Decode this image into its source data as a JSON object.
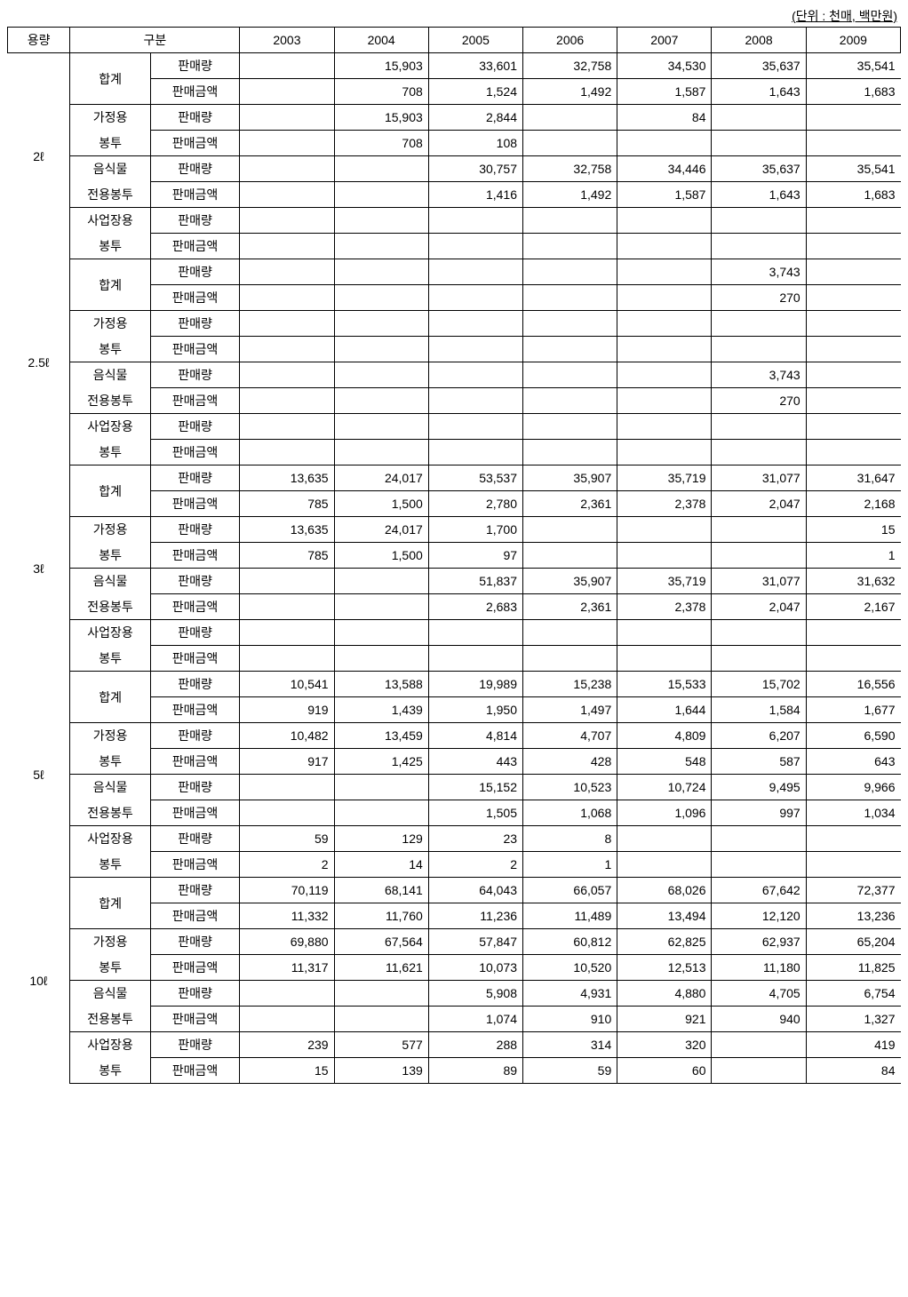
{
  "unit_label": "(단위 : 천매, 백만원)",
  "headers": {
    "capacity": "용량",
    "category": "구분",
    "years": [
      "2003",
      "2004",
      "2005",
      "2006",
      "2007",
      "2008",
      "2009"
    ]
  },
  "subcats": {
    "total": "합계",
    "home1": "가정용",
    "home2": "봉투",
    "food1": "음식물",
    "food2": "전용봉투",
    "biz1": "사업장용",
    "biz2": "봉투"
  },
  "metrics": {
    "qty": "판매량",
    "amt": "판매금액"
  },
  "capacities": [
    "2ℓ",
    "2.5ℓ",
    "3ℓ",
    "5ℓ",
    "10ℓ"
  ],
  "data": {
    "2l": {
      "total": {
        "qty": [
          "",
          "15,903",
          "33,601",
          "32,758",
          "34,530",
          "35,637",
          "35,541"
        ],
        "amt": [
          "",
          "708",
          "1,524",
          "1,492",
          "1,587",
          "1,643",
          "1,683"
        ]
      },
      "home": {
        "qty": [
          "",
          "15,903",
          "2,844",
          "",
          "84",
          "",
          ""
        ],
        "amt": [
          "",
          "708",
          "108",
          "",
          "",
          "",
          ""
        ]
      },
      "food": {
        "qty": [
          "",
          "",
          "30,757",
          "32,758",
          "34,446",
          "35,637",
          "35,541"
        ],
        "amt": [
          "",
          "",
          "1,416",
          "1,492",
          "1,587",
          "1,643",
          "1,683"
        ]
      },
      "biz": {
        "qty": [
          "",
          "",
          "",
          "",
          "",
          "",
          ""
        ],
        "amt": [
          "",
          "",
          "",
          "",
          "",
          "",
          ""
        ]
      }
    },
    "2_5l": {
      "total": {
        "qty": [
          "",
          "",
          "",
          "",
          "",
          "3,743",
          ""
        ],
        "amt": [
          "",
          "",
          "",
          "",
          "",
          "270",
          ""
        ]
      },
      "home": {
        "qty": [
          "",
          "",
          "",
          "",
          "",
          "",
          ""
        ],
        "amt": [
          "",
          "",
          "",
          "",
          "",
          "",
          ""
        ]
      },
      "food": {
        "qty": [
          "",
          "",
          "",
          "",
          "",
          "3,743",
          ""
        ],
        "amt": [
          "",
          "",
          "",
          "",
          "",
          "270",
          ""
        ]
      },
      "biz": {
        "qty": [
          "",
          "",
          "",
          "",
          "",
          "",
          ""
        ],
        "amt": [
          "",
          "",
          "",
          "",
          "",
          "",
          ""
        ]
      }
    },
    "3l": {
      "total": {
        "qty": [
          "13,635",
          "24,017",
          "53,537",
          "35,907",
          "35,719",
          "31,077",
          "31,647"
        ],
        "amt": [
          "785",
          "1,500",
          "2,780",
          "2,361",
          "2,378",
          "2,047",
          "2,168"
        ]
      },
      "home": {
        "qty": [
          "13,635",
          "24,017",
          "1,700",
          "",
          "",
          "",
          "15"
        ],
        "amt": [
          "785",
          "1,500",
          "97",
          "",
          "",
          "",
          "1"
        ]
      },
      "food": {
        "qty": [
          "",
          "",
          "51,837",
          "35,907",
          "35,719",
          "31,077",
          "31,632"
        ],
        "amt": [
          "",
          "",
          "2,683",
          "2,361",
          "2,378",
          "2,047",
          "2,167"
        ]
      },
      "biz": {
        "qty": [
          "",
          "",
          "",
          "",
          "",
          "",
          ""
        ],
        "amt": [
          "",
          "",
          "",
          "",
          "",
          "",
          ""
        ]
      }
    },
    "5l": {
      "total": {
        "qty": [
          "10,541",
          "13,588",
          "19,989",
          "15,238",
          "15,533",
          "15,702",
          "16,556"
        ],
        "amt": [
          "919",
          "1,439",
          "1,950",
          "1,497",
          "1,644",
          "1,584",
          "1,677"
        ]
      },
      "home": {
        "qty": [
          "10,482",
          "13,459",
          "4,814",
          "4,707",
          "4,809",
          "6,207",
          "6,590"
        ],
        "amt": [
          "917",
          "1,425",
          "443",
          "428",
          "548",
          "587",
          "643"
        ]
      },
      "food": {
        "qty": [
          "",
          "",
          "15,152",
          "10,523",
          "10,724",
          "9,495",
          "9,966"
        ],
        "amt": [
          "",
          "",
          "1,505",
          "1,068",
          "1,096",
          "997",
          "1,034"
        ]
      },
      "biz": {
        "qty": [
          "59",
          "129",
          "23",
          "8",
          "",
          "",
          ""
        ],
        "amt": [
          "2",
          "14",
          "2",
          "1",
          "",
          "",
          ""
        ]
      }
    },
    "10l": {
      "total": {
        "qty": [
          "70,119",
          "68,141",
          "64,043",
          "66,057",
          "68,026",
          "67,642",
          "72,377"
        ],
        "amt": [
          "11,332",
          "11,760",
          "11,236",
          "11,489",
          "13,494",
          "12,120",
          "13,236"
        ]
      },
      "home": {
        "qty": [
          "69,880",
          "67,564",
          "57,847",
          "60,812",
          "62,825",
          "62,937",
          "65,204"
        ],
        "amt": [
          "11,317",
          "11,621",
          "10,073",
          "10,520",
          "12,513",
          "11,180",
          "11,825"
        ]
      },
      "food": {
        "qty": [
          "",
          "",
          "5,908",
          "4,931",
          "4,880",
          "4,705",
          "6,754"
        ],
        "amt": [
          "",
          "",
          "1,074",
          "910",
          "921",
          "940",
          "1,327"
        ]
      },
      "biz": {
        "qty": [
          "239",
          "577",
          "288",
          "314",
          "320",
          "",
          "419"
        ],
        "amt": [
          "15",
          "139",
          "89",
          "59",
          "60",
          "",
          "84"
        ]
      }
    }
  }
}
